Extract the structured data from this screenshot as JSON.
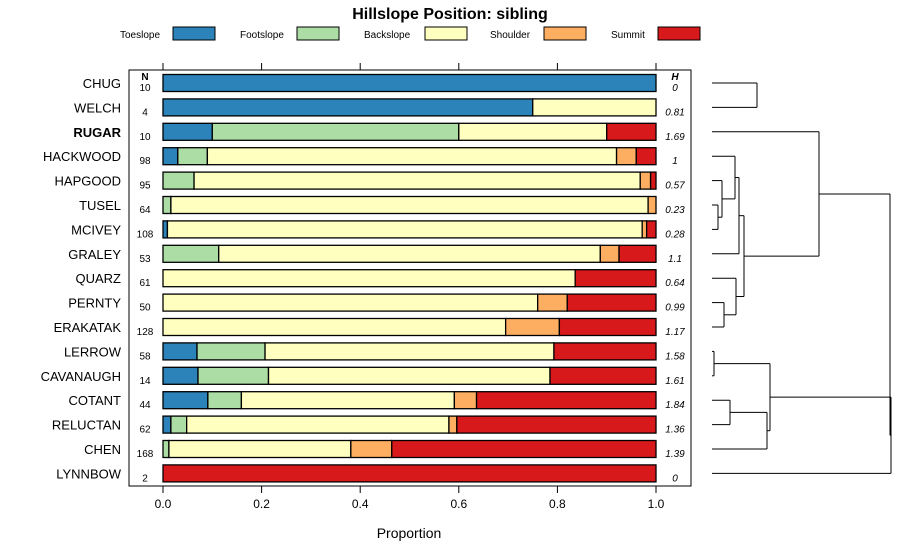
{
  "chart_data": {
    "type": "bar",
    "orientation": "horizontal",
    "stacked": true,
    "title": "Hillslope Position: sibling",
    "xlabel": "Proportion",
    "xlim": [
      0,
      1
    ],
    "xticks": [
      "0.0",
      "0.2",
      "0.4",
      "0.6",
      "0.8",
      "1.0"
    ],
    "legend_position": "top",
    "n_header": "N",
    "h_header": "H",
    "series": [
      {
        "name": "Toeslope",
        "color": "#2b83ba"
      },
      {
        "name": "Footslope",
        "color": "#abdda4"
      },
      {
        "name": "Backslope",
        "color": "#ffffbf"
      },
      {
        "name": "Shoulder",
        "color": "#fdae61"
      },
      {
        "name": "Summit",
        "color": "#d7191c"
      }
    ],
    "rows": [
      {
        "name": "CHUG",
        "n": "10",
        "h": "0",
        "values": [
          1.0,
          0,
          0,
          0,
          0
        ],
        "bold": false
      },
      {
        "name": "WELCH",
        "n": "4",
        "h": "0.81",
        "values": [
          0.75,
          0,
          0.25,
          0,
          0
        ],
        "bold": false
      },
      {
        "name": "RUGAR",
        "n": "10",
        "h": "1.69",
        "values": [
          0.1,
          0.5,
          0.3,
          0,
          0.1
        ],
        "bold": true
      },
      {
        "name": "HACKWOOD",
        "n": "98",
        "h": "1",
        "values": [
          0.03,
          0.06,
          0.83,
          0.04,
          0.04
        ],
        "bold": false
      },
      {
        "name": "HAPGOOD",
        "n": "95",
        "h": "0.57",
        "values": [
          0,
          0.063,
          0.905,
          0.021,
          0.011
        ],
        "bold": false
      },
      {
        "name": "TUSEL",
        "n": "64",
        "h": "0.23",
        "values": [
          0,
          0.016,
          0.968,
          0.016,
          0
        ],
        "bold": false
      },
      {
        "name": "MCIVEY",
        "n": "108",
        "h": "0.28",
        "values": [
          0.009,
          0,
          0.963,
          0.009,
          0.019
        ],
        "bold": false
      },
      {
        "name": "GRALEY",
        "n": "53",
        "h": "1.1",
        "values": [
          0,
          0.113,
          0.774,
          0.038,
          0.075
        ],
        "bold": false
      },
      {
        "name": "QUARZ",
        "n": "61",
        "h": "0.64",
        "values": [
          0,
          0,
          0.836,
          0,
          0.164
        ],
        "bold": false
      },
      {
        "name": "PERNTY",
        "n": "50",
        "h": "0.99",
        "values": [
          0,
          0,
          0.76,
          0.06,
          0.18
        ],
        "bold": false
      },
      {
        "name": "ERAKATAK",
        "n": "128",
        "h": "1.17",
        "values": [
          0,
          0,
          0.695,
          0.109,
          0.196
        ],
        "bold": false
      },
      {
        "name": "LERROW",
        "n": "58",
        "h": "1.58",
        "values": [
          0.069,
          0.138,
          0.586,
          0,
          0.207
        ],
        "bold": false
      },
      {
        "name": "CAVANAUGH",
        "n": "14",
        "h": "1.61",
        "values": [
          0.071,
          0.143,
          0.571,
          0,
          0.215
        ],
        "bold": false
      },
      {
        "name": "COTANT",
        "n": "44",
        "h": "1.84",
        "values": [
          0.091,
          0.068,
          0.432,
          0.045,
          0.364
        ],
        "bold": false
      },
      {
        "name": "RELUCTAN",
        "n": "62",
        "h": "1.36",
        "values": [
          0.016,
          0.032,
          0.532,
          0.016,
          0.404
        ],
        "bold": false
      },
      {
        "name": "CHEN",
        "n": "168",
        "h": "1.39",
        "values": [
          0,
          0.012,
          0.369,
          0.083,
          0.536
        ],
        "bold": false
      },
      {
        "name": "LYNNBOW",
        "n": "2",
        "h": "0",
        "values": [
          0,
          0,
          0,
          0,
          1.0
        ],
        "bold": false
      }
    ]
  }
}
